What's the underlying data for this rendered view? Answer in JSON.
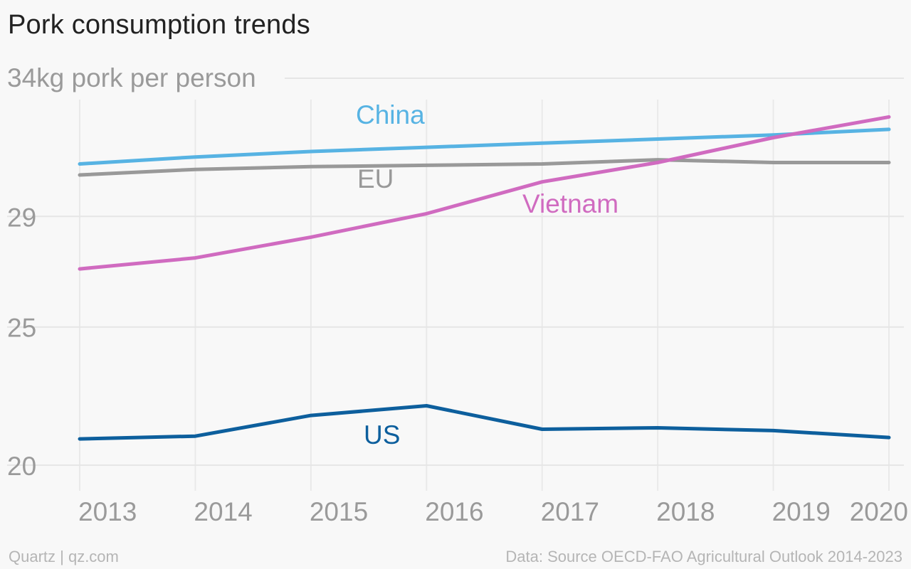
{
  "chart_data": {
    "type": "line",
    "title": "Pork consumption trends",
    "x": [
      "2013",
      "2014",
      "2015",
      "2016",
      "2017",
      "2018",
      "2019",
      "2020"
    ],
    "y_ticks": [
      20,
      25,
      29,
      34
    ],
    "y_tick_labels": [
      "20",
      "25",
      "29",
      "34kg pork per person"
    ],
    "ylim": [
      20,
      34
    ],
    "grid": true,
    "series": [
      {
        "name": "China",
        "color": "#57b3e3",
        "values": [
          30.9,
          31.15,
          31.35,
          31.5,
          31.65,
          31.8,
          31.95,
          32.15
        ]
      },
      {
        "name": "EU",
        "color": "#999999",
        "values": [
          30.5,
          30.7,
          30.8,
          30.85,
          30.9,
          31.05,
          30.95,
          30.95
        ]
      },
      {
        "name": "Vietnam",
        "color": "#d06bc0",
        "values": [
          27.1,
          27.5,
          28.25,
          29.1,
          30.25,
          30.95,
          31.85,
          32.6
        ]
      },
      {
        "name": "US",
        "color": "#0d5f9d",
        "values": [
          20.95,
          21.05,
          21.8,
          22.15,
          21.3,
          21.35,
          21.25,
          21.0
        ]
      }
    ]
  },
  "footer": {
    "source_left": "Quartz | qz.com",
    "source_right": "Data: Source OECD-FAO Agricultural Outlook 2014-2023"
  }
}
